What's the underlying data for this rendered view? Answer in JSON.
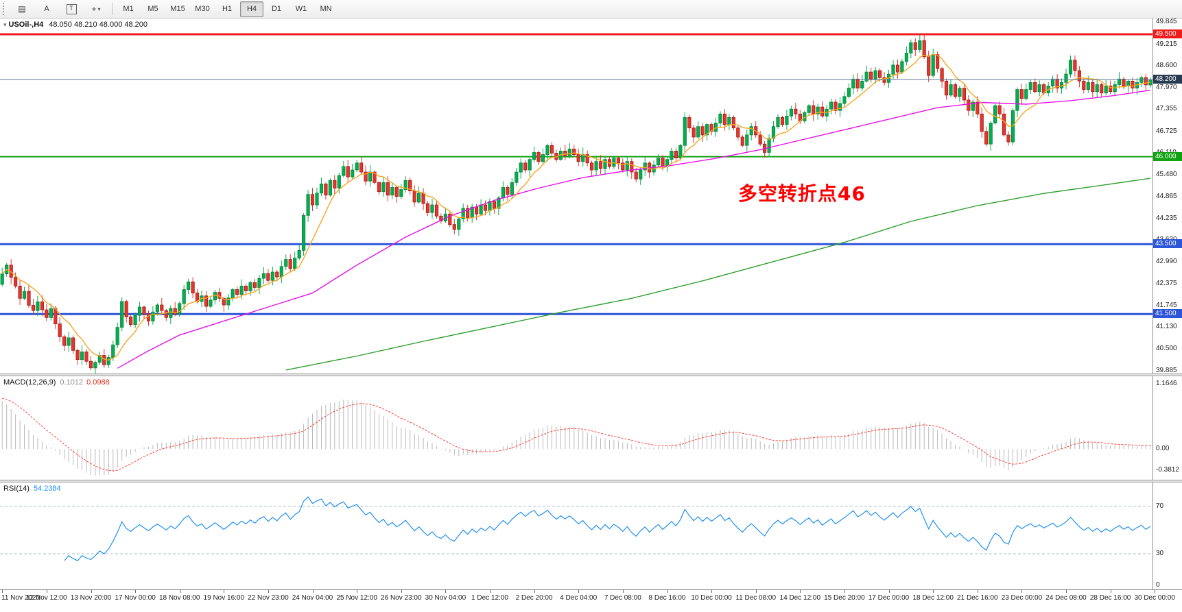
{
  "toolbar": {
    "chart_icon_glyph": "▤",
    "button_a": "A",
    "button_t": "T",
    "cursor_glyph": "+",
    "caret_glyph": "▾",
    "timeframes": [
      "M1",
      "M5",
      "M15",
      "M30",
      "H1",
      "H4",
      "D1",
      "W1",
      "MN"
    ],
    "active_timeframe": "H4"
  },
  "chart_data": [
    {
      "type": "candlestick",
      "symbol": "USOil-",
      "timeframe": "H4",
      "title_symbol": "USOil-,H4",
      "title_ohlc": "48.050 48.210 48.000 48.200",
      "ylim": [
        39.8,
        49.95
      ],
      "y_ticks": [
        49.845,
        49.215,
        48.6,
        47.97,
        47.355,
        46.725,
        46.11,
        45.48,
        44.865,
        44.235,
        43.62,
        42.99,
        42.375,
        41.745,
        41.13,
        40.5,
        39.885
      ],
      "lines": [
        {
          "price": 49.5,
          "label": "49.500",
          "color": "#f21b1b",
          "width": 3
        },
        {
          "price": 46.0,
          "label": "46.000",
          "color": "#11a211",
          "width": 2
        },
        {
          "price": 43.5,
          "label": "43.500",
          "color": "#2d55d8",
          "width": 3
        },
        {
          "price": 41.5,
          "label": "41.500",
          "color": "#2d55d8",
          "width": 3
        }
      ],
      "current_price": 48.2,
      "current_price_label": "48.200",
      "bid_line_color": "#5c7a99",
      "current_badge_color": "#273a52",
      "up_color": "#00b050",
      "up_border": "#15803c",
      "down_color": "#e8352c",
      "down_border": "#9e1d17",
      "ma_fast_color": "#f5a623",
      "ma_medium": {
        "color": "#e512e5",
        "points": [
          [
            26,
            39.95
          ],
          [
            33,
            40.45
          ],
          [
            40,
            40.9
          ],
          [
            50,
            41.3
          ],
          [
            60,
            41.7
          ],
          [
            70,
            42.1
          ],
          [
            80,
            42.9
          ],
          [
            91,
            43.7
          ],
          [
            101,
            44.3
          ],
          [
            111,
            44.75
          ],
          [
            121,
            45.1
          ],
          [
            131,
            45.4
          ],
          [
            141,
            45.6
          ],
          [
            151,
            45.75
          ],
          [
            161,
            45.95
          ],
          [
            171,
            46.2
          ],
          [
            181,
            46.5
          ],
          [
            191,
            46.8
          ],
          [
            201,
            47.1
          ],
          [
            211,
            47.4
          ],
          [
            221,
            47.55
          ],
          [
            231,
            47.5
          ],
          [
            241,
            47.6
          ],
          [
            251,
            47.75
          ],
          [
            259,
            47.9
          ]
        ]
      },
      "ma_slow": {
        "color": "#2f9e2f",
        "points": [
          [
            64,
            39.9
          ],
          [
            80,
            40.3
          ],
          [
            95,
            40.72
          ],
          [
            110,
            41.12
          ],
          [
            126,
            41.55
          ],
          [
            142,
            41.95
          ],
          [
            158,
            42.45
          ],
          [
            174,
            43.0
          ],
          [
            190,
            43.55
          ],
          [
            205,
            44.15
          ],
          [
            220,
            44.6
          ],
          [
            235,
            44.95
          ],
          [
            248,
            45.18
          ],
          [
            259,
            45.38
          ]
        ]
      },
      "first_open": 42.35,
      "closes": [
        42.65,
        42.9,
        42.55,
        42.3,
        41.95,
        42.15,
        41.75,
        41.6,
        41.85,
        41.62,
        41.4,
        41.66,
        41.22,
        40.85,
        40.6,
        40.82,
        40.46,
        40.2,
        40.42,
        40.15,
        39.96,
        40.12,
        40.32,
        40.05,
        40.26,
        40.62,
        41.12,
        41.86,
        41.42,
        41.2,
        41.46,
        41.7,
        41.5,
        41.3,
        41.56,
        41.76,
        41.6,
        41.4,
        41.66,
        41.5,
        41.8,
        42.2,
        42.42,
        42.1,
        41.86,
        42.02,
        41.72,
        41.9,
        42.12,
        41.95,
        41.76,
        41.96,
        42.2,
        42.06,
        42.3,
        42.16,
        42.4,
        42.26,
        42.52,
        42.66,
        42.46,
        42.7,
        42.56,
        42.86,
        43.06,
        42.8,
        43.1,
        43.32,
        44.32,
        44.92,
        44.62,
        44.96,
        45.22,
        44.9,
        45.32,
        45.1,
        45.46,
        45.72,
        45.42,
        45.62,
        45.82,
        45.56,
        45.3,
        45.56,
        45.26,
        45.0,
        45.26,
        44.9,
        45.12,
        44.86,
        45.06,
        45.32,
        45.02,
        44.7,
        44.96,
        44.66,
        44.4,
        44.62,
        44.3,
        44.16,
        44.36,
        44.06,
        43.92,
        44.22,
        44.52,
        44.26,
        44.56,
        44.36,
        44.62,
        44.46,
        44.72,
        44.52,
        44.82,
        45.12,
        44.92,
        45.26,
        45.56,
        45.82,
        45.62,
        45.92,
        46.12,
        45.86,
        46.06,
        46.32,
        46.1,
        45.92,
        46.16,
        46.02,
        46.22,
        46.06,
        45.86,
        46.06,
        45.82,
        45.62,
        45.86,
        45.66,
        45.92,
        45.72,
        45.96,
        45.82,
        45.62,
        45.86,
        45.56,
        45.36,
        45.62,
        45.82,
        45.56,
        45.76,
        45.96,
        45.72,
        45.92,
        46.16,
        45.96,
        46.32,
        47.12,
        46.82,
        46.56,
        46.86,
        46.62,
        46.92,
        46.72,
        46.96,
        47.22,
        46.92,
        47.12,
        46.82,
        46.56,
        46.32,
        46.62,
        46.86,
        46.62,
        46.36,
        46.12,
        46.52,
        46.86,
        47.12,
        46.92,
        47.16,
        47.36,
        47.22,
        47.02,
        47.26,
        47.46,
        47.22,
        47.42,
        47.16,
        47.36,
        47.56,
        47.32,
        47.52,
        47.72,
        47.96,
        48.22,
        47.96,
        48.16,
        48.42,
        48.22,
        48.46,
        48.26,
        48.12,
        48.36,
        48.62,
        48.42,
        48.72,
        48.96,
        49.26,
        49.06,
        49.32,
        48.86,
        48.32,
        48.92,
        48.52,
        48.16,
        47.76,
        48.06,
        47.72,
        47.96,
        47.62,
        47.32,
        47.56,
        47.22,
        46.72,
        46.36,
        46.96,
        47.46,
        47.22,
        46.62,
        46.42,
        47.32,
        47.92,
        47.66,
        47.92,
        48.12,
        47.86,
        48.06,
        47.82,
        48.02,
        48.22,
        47.96,
        48.12,
        48.36,
        48.76,
        48.46,
        48.16,
        47.92,
        48.12,
        47.86,
        48.06,
        47.82,
        48.02,
        47.86,
        48.06,
        48.22,
        48.02,
        48.16,
        47.96,
        48.12,
        48.26,
        48.05,
        48.2
      ],
      "x_labels": [
        "11 Nov 2020",
        "12 Nov 12:00",
        "13 Nov 20:00",
        "17 Nov 00:00",
        "18 Nov 08:00",
        "19 Nov 16:00",
        "22 Nov 23:00",
        "24 Nov 04:00",
        "25 Nov 12:00",
        "26 Nov 23:00",
        "30 Nov 04:00",
        "1 Dec 12:00",
        "2 Dec 20:00",
        "4 Dec 04:00",
        "7 Dec 08:00",
        "8 Dec 16:00",
        "10 Dec 00:00",
        "11 Dec 08:00",
        "14 Dec 12:00",
        "15 Dec 20:00",
        "17 Dec 00:00",
        "18 Dec 12:00",
        "21 Dec 16:00",
        "23 Dec 00:00",
        "24 Dec 08:00",
        "28 Dec 16:00",
        "30 Dec 00:00"
      ],
      "annotation": {
        "text": "多空转折点46",
        "color": "#ff0000",
        "x_index": 166,
        "price": 44.78
      }
    },
    {
      "type": "macd_histogram",
      "label": "MACD(12,26,9)",
      "value_main": "0.1012",
      "value_signal": "0.0988",
      "ylim": [
        -0.55,
        1.3
      ],
      "y_ticks": [
        {
          "v": 1.1646,
          "label": "1.1646"
        },
        {
          "v": 0,
          "label": "0.00"
        },
        {
          "v": -0.3812,
          "label": "-0.3812"
        }
      ],
      "hist_color": "#b9b9b9",
      "signal_color": "#ff3b30"
    },
    {
      "type": "rsi",
      "label": "RSI(14)",
      "value": "54.2384",
      "ylim": [
        0,
        90
      ],
      "levels": [
        70,
        30
      ],
      "y_ticks": [
        {
          "v": 70,
          "label": "70"
        },
        {
          "v": 30,
          "label": "30"
        },
        {
          "v": 0,
          "label": "0"
        }
      ],
      "line_color": "#2090f0",
      "level_color": "#a8bdd4"
    }
  ]
}
